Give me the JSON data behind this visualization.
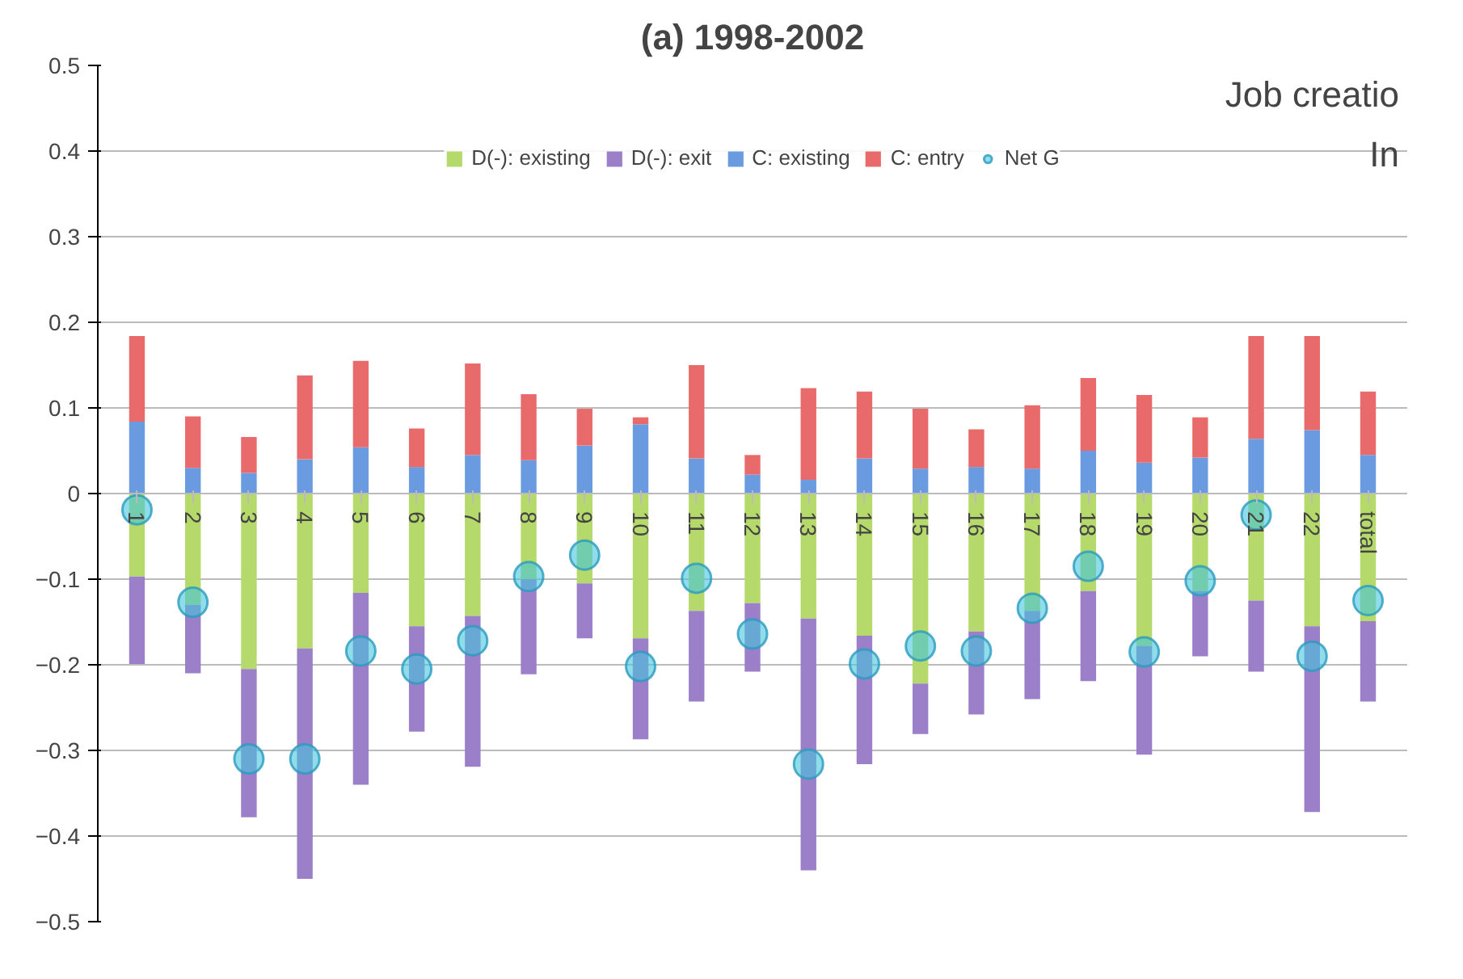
{
  "chart_data": {
    "type": "bar",
    "stacked": true,
    "title": "(a) 1998-2002",
    "annotations": [
      "Job creatio",
      "In"
    ],
    "categories": [
      "1",
      "2",
      "3",
      "4",
      "5",
      "6",
      "7",
      "8",
      "9",
      "10",
      "11",
      "12",
      "13",
      "14",
      "15",
      "16",
      "17",
      "18",
      "19",
      "20",
      "21",
      "22",
      "total"
    ],
    "series": [
      {
        "name": "D(-): existing",
        "color": "#b5d96a",
        "values": [
          -0.097,
          -0.13,
          -0.205,
          -0.181,
          -0.116,
          -0.155,
          -0.143,
          -0.1,
          -0.105,
          -0.169,
          -0.137,
          -0.128,
          -0.146,
          -0.166,
          -0.222,
          -0.161,
          -0.137,
          -0.114,
          -0.178,
          -0.114,
          -0.125,
          -0.155,
          -0.149
        ]
      },
      {
        "name": "D(-): exit",
        "color": "#9b7fc8",
        "values": [
          -0.102,
          -0.08,
          -0.173,
          -0.269,
          -0.224,
          -0.123,
          -0.176,
          -0.111,
          -0.064,
          -0.118,
          -0.106,
          -0.08,
          -0.294,
          -0.15,
          -0.059,
          -0.097,
          -0.103,
          -0.105,
          -0.127,
          -0.076,
          -0.083,
          -0.217,
          -0.094
        ]
      },
      {
        "name": "C: existing",
        "color": "#6a9be0",
        "values": [
          0.084,
          0.03,
          0.024,
          0.04,
          0.054,
          0.031,
          0.045,
          0.039,
          0.056,
          0.081,
          0.041,
          0.022,
          0.016,
          0.041,
          0.029,
          0.031,
          0.029,
          0.05,
          0.036,
          0.042,
          0.064,
          0.074,
          0.045
        ]
      },
      {
        "name": "C: entry",
        "color": "#e86a6a",
        "values": [
          0.1,
          0.06,
          0.042,
          0.098,
          0.101,
          0.045,
          0.107,
          0.077,
          0.043,
          0.008,
          0.109,
          0.023,
          0.107,
          0.078,
          0.07,
          0.044,
          0.074,
          0.085,
          0.079,
          0.047,
          0.12,
          0.11,
          0.074
        ]
      },
      {
        "name": "Net G",
        "type": "scatter",
        "color": "#45c4dc",
        "values": [
          -0.019,
          -0.127,
          -0.31,
          -0.31,
          -0.184,
          -0.205,
          -0.172,
          -0.097,
          -0.072,
          -0.202,
          -0.099,
          -0.164,
          -0.316,
          -0.199,
          -0.178,
          -0.184,
          -0.134,
          -0.085,
          -0.185,
          -0.102,
          -0.025,
          -0.19,
          -0.125
        ]
      }
    ],
    "ylim": [
      -0.5,
      0.5
    ],
    "yticks": [
      0.5,
      0.4,
      0.3,
      0.2,
      0.1,
      0,
      -0.1,
      -0.2,
      -0.3,
      -0.4,
      -0.5
    ],
    "grid": "y",
    "legend": "top",
    "marker": "circle"
  }
}
